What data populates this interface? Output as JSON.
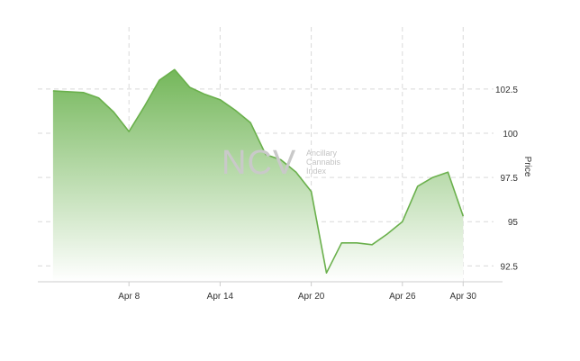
{
  "chart_data": {
    "type": "area",
    "title": "",
    "xlabel": "",
    "ylabel": "Price",
    "ylim": [
      91.6,
      105.5
    ],
    "y_ticks": [
      92.5,
      95,
      97.5,
      100,
      102.5
    ],
    "y_tick_labels": [
      "92.5",
      "95",
      "97.5",
      "100",
      "102.5"
    ],
    "x_ticks": [
      "2024-04-08",
      "2024-04-14",
      "2024-04-20",
      "2024-04-26",
      "2024-04-30"
    ],
    "x_tick_labels": [
      "Apr 8",
      "Apr 14",
      "Apr 20",
      "Apr 26",
      "Apr 30"
    ],
    "xlim": [
      "2024-04-02",
      "2024-05-02"
    ],
    "y_axis_position": "right",
    "grid": true,
    "legend": "none",
    "series": [
      {
        "x": [
          "2024-04-03",
          "2024-04-05",
          "2024-04-06",
          "2024-04-07",
          "2024-04-08",
          "2024-04-09",
          "2024-04-10",
          "2024-04-11",
          "2024-04-12",
          "2024-04-13",
          "2024-04-14",
          "2024-04-15",
          "2024-04-16",
          "2024-04-17",
          "2024-04-18",
          "2024-04-19",
          "2024-04-20",
          "2024-04-21",
          "2024-04-22",
          "2024-04-23",
          "2024-04-24",
          "2024-04-25",
          "2024-04-26",
          "2024-04-27",
          "2024-04-28",
          "2024-04-29",
          "2024-04-30"
        ],
        "values": [
          102.4,
          102.3,
          102.0,
          101.2,
          100.1,
          101.5,
          103.0,
          103.6,
          102.6,
          102.2,
          101.9,
          101.3,
          100.6,
          98.8,
          98.5,
          97.8,
          96.7,
          92.1,
          93.8,
          93.8,
          93.7,
          94.3,
          95.0,
          97.0,
          97.5,
          97.8,
          95.3
        ]
      }
    ],
    "colors": {
      "line": "#6ab04c",
      "fill_top": "#74b75a",
      "fill_bottom": "#ffffff",
      "grid": "#d9d9d9",
      "axis": "#cccccc"
    }
  },
  "watermark": {
    "logo": "NCV",
    "line1": "Ancillary",
    "line2": "Cannabis",
    "line3": "Index"
  }
}
